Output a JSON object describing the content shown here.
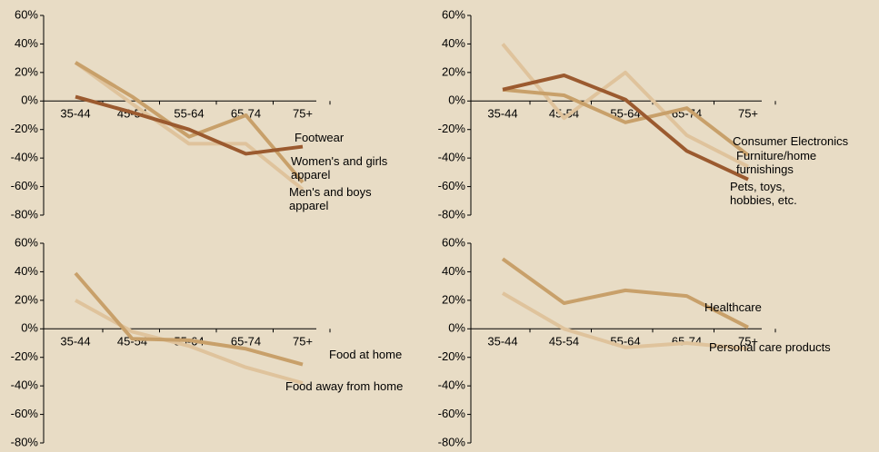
{
  "chart_data": [
    {
      "type": "line",
      "categories": [
        "35-44",
        "45-54",
        "55-64",
        "65-74",
        "75+"
      ],
      "ylim": [
        -80,
        60
      ],
      "yticks": [
        {
          "value": -80,
          "label": "-80%"
        },
        {
          "value": -60,
          "label": "-60%"
        },
        {
          "value": -40,
          "label": "-40%"
        },
        {
          "value": -20,
          "label": "-20%"
        },
        {
          "value": 0,
          "label": "0%"
        },
        {
          "value": 20,
          "label": "20%"
        },
        {
          "value": 40,
          "label": "40%"
        },
        {
          "value": 60,
          "label": "60%"
        }
      ],
      "series": [
        {
          "name": "Men's and boys apparel",
          "color": "#dfc39c",
          "values": [
            27,
            -2,
            -30,
            -30,
            -62
          ]
        },
        {
          "name": "Women's and girls apparel",
          "color": "#c8a06a",
          "values": [
            27,
            3,
            -25,
            -10,
            -57
          ]
        },
        {
          "name": "Footwear",
          "color": "#9b5a2f",
          "values": [
            3,
            -8,
            -20,
            -37,
            -32
          ]
        }
      ]
    },
    {
      "type": "line",
      "categories": [
        "35-44",
        "45-54",
        "55-64",
        "65-74",
        "75+"
      ],
      "ylim": [
        -80,
        60
      ],
      "yticks": [
        {
          "value": -80,
          "label": "-80%"
        },
        {
          "value": -60,
          "label": "-60%"
        },
        {
          "value": -40,
          "label": "-40%"
        },
        {
          "value": -20,
          "label": "-20%"
        },
        {
          "value": 0,
          "label": "0%"
        },
        {
          "value": 20,
          "label": "20%"
        },
        {
          "value": 40,
          "label": "40%"
        },
        {
          "value": 60,
          "label": "60%"
        }
      ],
      "series": [
        {
          "name": "Furniture/home furnishings",
          "color": "#dfc39c",
          "values": [
            40,
            -12,
            20,
            -24,
            -46
          ]
        },
        {
          "name": "Consumer Electronics",
          "color": "#c8a06a",
          "values": [
            8,
            4,
            -15,
            -5,
            -38
          ]
        },
        {
          "name": "Pets, toys, hobbies, etc.",
          "color": "#9b5a2f",
          "values": [
            8,
            18,
            1,
            -35,
            -55
          ]
        }
      ]
    },
    {
      "type": "line",
      "categories": [
        "35-44",
        "45-54",
        "55-64",
        "65-74",
        "75+"
      ],
      "ylim": [
        -80,
        60
      ],
      "yticks": [
        {
          "value": -80,
          "label": "-80%"
        },
        {
          "value": -60,
          "label": "-60%"
        },
        {
          "value": -40,
          "label": "-40%"
        },
        {
          "value": -20,
          "label": "-20%"
        },
        {
          "value": 0,
          "label": "0%"
        },
        {
          "value": 20,
          "label": "20%"
        },
        {
          "value": 40,
          "label": "40%"
        },
        {
          "value": 60,
          "label": "60%"
        }
      ],
      "series": [
        {
          "name": "Food away from home",
          "color": "#dfc39c",
          "values": [
            20,
            -2,
            -12,
            -27,
            -38
          ]
        },
        {
          "name": "Food at home",
          "color": "#c8a06a",
          "values": [
            39,
            -7,
            -8,
            -14,
            -25
          ]
        }
      ]
    },
    {
      "type": "line",
      "categories": [
        "35-44",
        "45-54",
        "55-64",
        "65-74",
        "75+"
      ],
      "ylim": [
        -80,
        60
      ],
      "yticks": [
        {
          "value": -80,
          "label": "-80%"
        },
        {
          "value": -60,
          "label": "-60%"
        },
        {
          "value": -40,
          "label": "-40%"
        },
        {
          "value": -20,
          "label": "-20%"
        },
        {
          "value": 0,
          "label": "0%"
        },
        {
          "value": 20,
          "label": "20%"
        },
        {
          "value": 40,
          "label": "40%"
        },
        {
          "value": 60,
          "label": "60%"
        }
      ],
      "series": [
        {
          "name": "Personal care products",
          "color": "#dfc39c",
          "values": [
            25,
            0,
            -13,
            -10,
            -14
          ]
        },
        {
          "name": "Healthcare",
          "color": "#c8a06a",
          "values": [
            49,
            18,
            27,
            23,
            1
          ]
        }
      ]
    }
  ]
}
